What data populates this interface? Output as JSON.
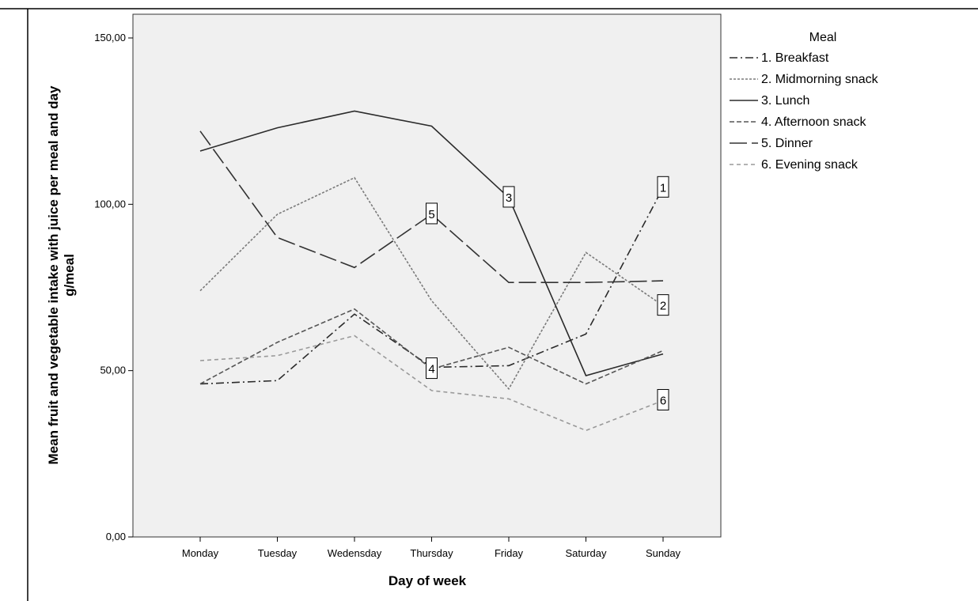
{
  "chart_data": {
    "type": "line",
    "xlabel": "Day of week",
    "ylabel_line1": "Mean fruit and vegetable intake with juice per meal and day",
    "ylabel_line2": "g/meal",
    "legend_title": "Meal",
    "legend_position": "right",
    "categories": [
      "Monday",
      "Tuesday",
      "Wedensday",
      "Thursday",
      "Friday",
      "Saturday",
      "Sunday"
    ],
    "ylim": [
      0,
      150
    ],
    "yticks": [
      "0,00",
      "50,00",
      "100,00",
      "150,00"
    ],
    "ytick_values": [
      0,
      50,
      100,
      150
    ],
    "grid": false,
    "series": [
      {
        "name": "1. Breakfast",
        "tag": "1",
        "tag_index": 6,
        "color": "#2b2b2b",
        "dash": "10,4,2,4",
        "values": [
          46,
          47,
          67,
          51,
          51.5,
          61,
          105
        ]
      },
      {
        "name": "2. Midmorning snack",
        "tag": "2",
        "tag_index": 6,
        "color": "#7a7a7a",
        "dash": "3,2",
        "values": [
          74,
          97,
          108,
          71,
          44.5,
          85.5,
          69.5
        ]
      },
      {
        "name": "3. Lunch",
        "tag": "3",
        "tag_index": 4,
        "color": "#2b2b2b",
        "dash": "",
        "values": [
          116,
          123,
          128,
          123.5,
          102,
          48.5,
          55
        ]
      },
      {
        "name": "4. Afternoon snack",
        "tag": "4",
        "tag_index": 3,
        "color": "#555555",
        "dash": "6,3",
        "values": [
          46,
          58.5,
          68.5,
          50.5,
          57,
          46,
          56
        ]
      },
      {
        "name": "5. Dinner",
        "tag": "5",
        "tag_index": 3,
        "color": "#333333",
        "dash": "22,6",
        "values": [
          122,
          90,
          81,
          97,
          76.5,
          76.5,
          77
        ]
      },
      {
        "name": "6. Evening snack",
        "tag": "6",
        "tag_index": 6,
        "color": "#999999",
        "dash": "5,4",
        "values": [
          53,
          54.5,
          60.5,
          44,
          41.5,
          32,
          41
        ]
      }
    ]
  }
}
